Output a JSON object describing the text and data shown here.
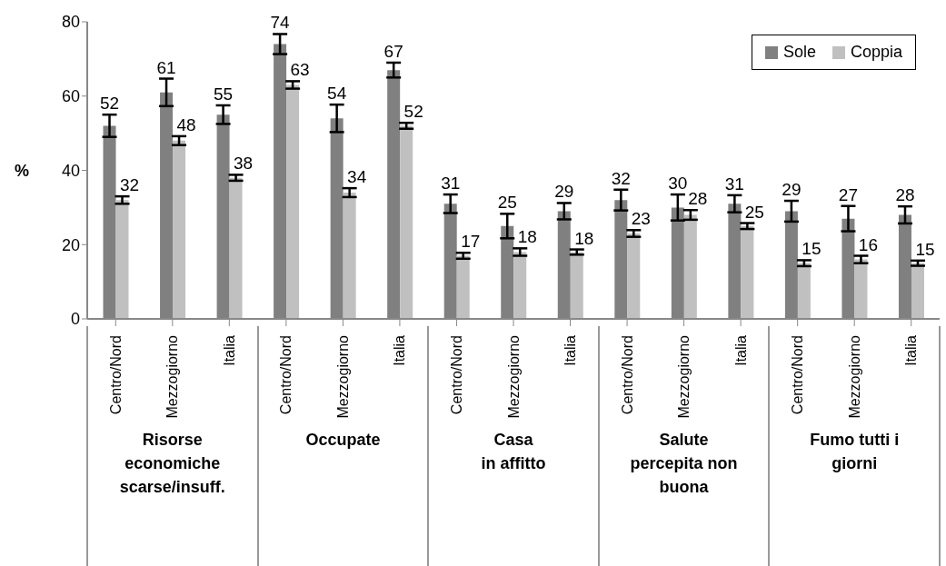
{
  "chart_data": {
    "type": "bar",
    "ylabel": "%",
    "categories": [
      "Centro/Nord",
      "Mezzogiorno",
      "Italia",
      "Centro/Nord",
      "Mezzogiorno",
      "Italia",
      "Centro/Nord",
      "Mezzogiorno",
      "Italia",
      "Centro/Nord",
      "Mezzogiorno",
      "Italia",
      "Centro/Nord",
      "Mezzogiorno",
      "Italia"
    ],
    "series": [
      {
        "name": "Sole",
        "color": "#808080",
        "values": [
          52,
          61,
          55,
          74,
          54,
          67,
          31,
          25,
          29,
          32,
          30,
          31,
          29,
          27,
          28
        ],
        "errors": [
          3,
          3.7,
          2.5,
          2.7,
          3.7,
          2,
          2.5,
          3.3,
          2.2,
          2.8,
          3.5,
          2.3,
          2.8,
          3.4,
          2.3
        ]
      },
      {
        "name": "Coppia",
        "color": "#c0c0c0",
        "values": [
          32,
          48,
          38,
          63,
          34,
          52,
          17,
          18,
          18,
          23,
          28,
          25,
          15,
          16,
          15
        ],
        "errors": [
          1,
          1.2,
          0.8,
          1,
          1.2,
          0.8,
          0.8,
          1,
          0.7,
          0.9,
          1.3,
          0.8,
          0.8,
          1,
          0.7
        ]
      }
    ],
    "annotations": [
      "Risorse\neconomiche\nscarse/insuff.",
      "Occupate",
      "Casa\nin affitto",
      "Salute\npercepita non\nbuona",
      "Fumo tutti i\ngiorni"
    ],
    "ylim": [
      0,
      80
    ],
    "yticks": [
      0,
      20,
      40,
      60,
      80
    ],
    "grid": false,
    "legend": "top right",
    "data_labels": true
  }
}
